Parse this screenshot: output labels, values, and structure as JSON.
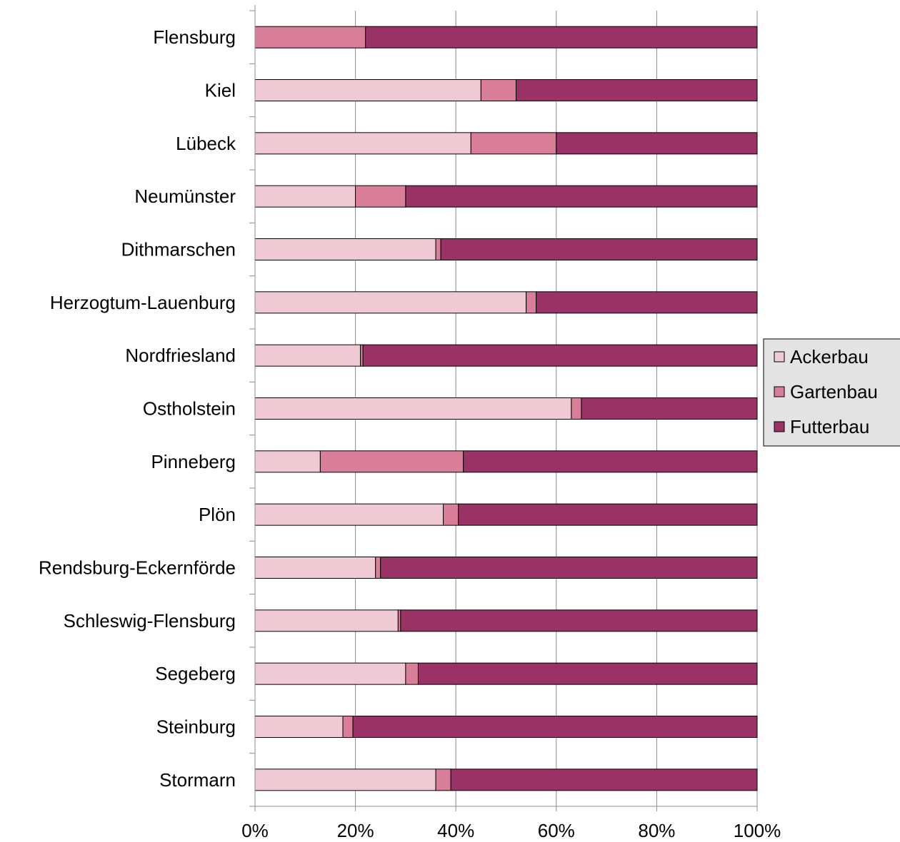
{
  "chart_data": {
    "type": "bar",
    "orientation": "horizontal",
    "stacked": "percent",
    "categories": [
      "Flensburg",
      "Kiel",
      "Lübeck",
      "Neumünster",
      "Dithmarschen",
      "Herzogtum-Lauenburg",
      "Nordfriesland",
      "Ostholstein",
      "Pinneberg",
      "Plön",
      "Rendsburg-Eckernförde",
      "Schleswig-Flensburg",
      "Segeberg",
      "Steinburg",
      "Stormarn"
    ],
    "series": [
      {
        "name": "Ackerbau",
        "color": "#efc9d4",
        "values": [
          0,
          45,
          43,
          20,
          36,
          54,
          21,
          63,
          13,
          37.5,
          24,
          28.5,
          30,
          17.5,
          36
        ]
      },
      {
        "name": "Gartenbau",
        "color": "#d87e98",
        "values": [
          22,
          7,
          17,
          10,
          1,
          2,
          0.5,
          2,
          28.5,
          3,
          1,
          0.5,
          2.5,
          2,
          3
        ]
      },
      {
        "name": "Futterbau",
        "color": "#993366",
        "values": [
          78,
          48,
          40,
          70,
          63,
          44,
          78.5,
          35,
          58.5,
          59.5,
          75,
          71,
          67.5,
          80.5,
          61
        ]
      }
    ],
    "xticks": [
      "0%",
      "20%",
      "40%",
      "60%",
      "80%",
      "100%"
    ],
    "xlim": [
      0,
      100
    ],
    "grid": true,
    "legend": "right"
  }
}
